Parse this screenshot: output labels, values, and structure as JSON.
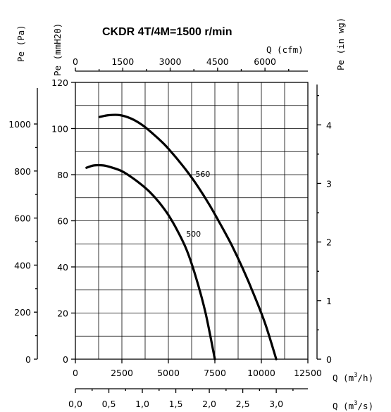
{
  "chart_data": {
    "type": "line",
    "title": "CKDR 4T/4M=1500 r/min",
    "grid": true,
    "x_axes": {
      "primary": {
        "label": "Q (m3/h)",
        "label_prefix": "Q (m",
        "label_sup": "3",
        "label_suffix": "/h)",
        "ticks": [
          "0",
          "2500",
          "5000",
          "7500",
          "10000",
          "12500"
        ],
        "lim": [
          0,
          12500
        ]
      },
      "m3s": {
        "label": "Q (m3/s)",
        "label_prefix": "Q (m",
        "label_sup": "3",
        "label_suffix": "/s)",
        "ticks": [
          "0,0",
          "0,5",
          "1,0",
          "1,5",
          "2,0",
          "2,5",
          "3,0"
        ],
        "values": [
          0,
          0.5,
          1.0,
          1.5,
          2.0,
          2.5,
          3.0
        ]
      },
      "cfm": {
        "label": "Q (cfm)",
        "ticks": [
          "0",
          "1500",
          "3000",
          "4500",
          "6000"
        ],
        "values": [
          0,
          1500,
          3000,
          4500,
          6000
        ]
      }
    },
    "y_axes": {
      "primary": {
        "label": "Pe (mmH20)",
        "ticks": [
          "0",
          "20",
          "40",
          "60",
          "80",
          "100",
          "120"
        ],
        "lim": [
          0,
          120
        ]
      },
      "pa": {
        "label": "Pe (Pa)",
        "ticks": [
          "0",
          "200",
          "400",
          "600",
          "800",
          "1000"
        ],
        "values": [
          0,
          200,
          400,
          600,
          800,
          1000
        ]
      },
      "inwg": {
        "label": "Pe (in wg)",
        "ticks": [
          "0",
          "1",
          "2",
          "3",
          "4"
        ],
        "values": [
          0,
          1,
          2,
          3,
          4
        ]
      }
    },
    "series": [
      {
        "name": "500",
        "x": [
          600,
          1000,
          1500,
          2000,
          2500,
          3000,
          3500,
          4000,
          4500,
          5000,
          5500,
          6000,
          6500,
          7000,
          7500
        ],
        "y": [
          83,
          84,
          84,
          83,
          81.5,
          79,
          76,
          72.5,
          68,
          62.5,
          55.5,
          47,
          35,
          20,
          0
        ]
      },
      {
        "name": "560",
        "x": [
          1300,
          1800,
          2400,
          3000,
          3600,
          4200,
          4800,
          5400,
          6000,
          6600,
          7200,
          7800,
          8400,
          9000,
          9600,
          10200,
          10800
        ],
        "y": [
          105,
          105.8,
          105.8,
          104.3,
          101.5,
          97.5,
          93,
          87.5,
          81.5,
          74.7,
          67,
          58.5,
          49.5,
          39.3,
          28,
          15.5,
          0
        ]
      }
    ]
  }
}
